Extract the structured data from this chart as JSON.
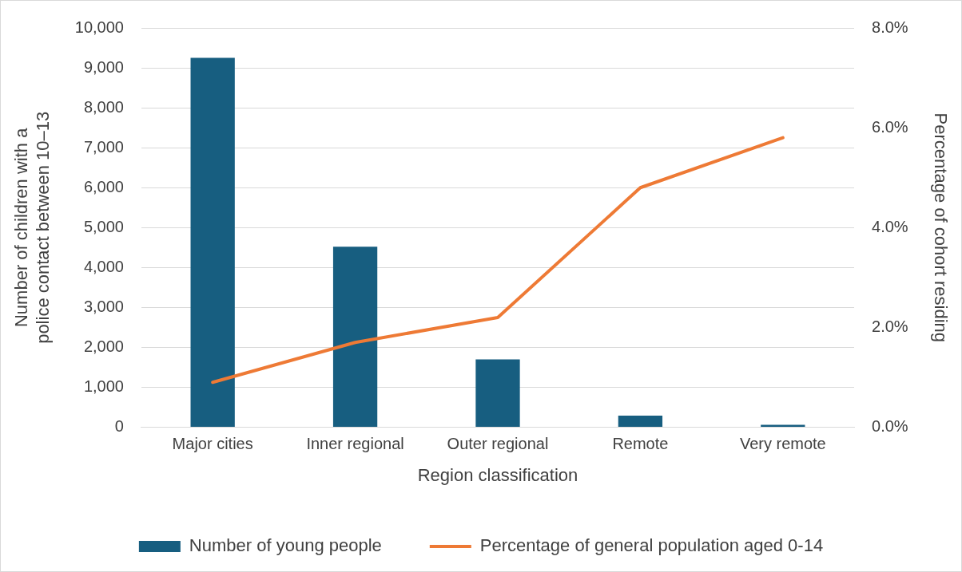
{
  "chart_data": {
    "type": "bar",
    "categories": [
      "Major cities",
      "Inner regional",
      "Outer regional",
      "Remote",
      "Very remote"
    ],
    "series": [
      {
        "name": "Number of young people",
        "color": "#175e80",
        "values": [
          9250,
          4520,
          1700,
          290,
          60
        ]
      },
      {
        "name": "Percentage of general population aged 0-14",
        "type": "line",
        "axis": "y2",
        "color": "#ee7a35",
        "values": [
          0.9,
          1.7,
          2.2,
          4.8,
          5.8
        ]
      }
    ],
    "xlabel": "Region classification",
    "ylabel": "Number of children with a police contact between 10–13",
    "y2label": "Percentage of cohort residing",
    "ylim": [
      0,
      10000
    ],
    "yticks": [
      {
        "value": 0,
        "label": "0"
      },
      {
        "value": 1000,
        "label": "1,000"
      },
      {
        "value": 2000,
        "label": "2,000"
      },
      {
        "value": 3000,
        "label": "3,000"
      },
      {
        "value": 4000,
        "label": "4,000"
      },
      {
        "value": 5000,
        "label": "5,000"
      },
      {
        "value": 6000,
        "label": "6,000"
      },
      {
        "value": 7000,
        "label": "7,000"
      },
      {
        "value": 8000,
        "label": "8,000"
      },
      {
        "value": 9000,
        "label": "9,000"
      },
      {
        "value": 10000,
        "label": "10,000"
      }
    ],
    "y2lim": [
      0,
      8
    ],
    "y2ticks": [
      {
        "value": 0,
        "label": "0.0%"
      },
      {
        "value": 2,
        "label": "2.0%"
      },
      {
        "value": 4,
        "label": "4.0%"
      },
      {
        "value": 6,
        "label": "6.0%"
      },
      {
        "value": 8,
        "label": "8.0%"
      }
    ],
    "grid": "y",
    "legend": "bottom",
    "marker": "none",
    "line_style": "solid"
  }
}
